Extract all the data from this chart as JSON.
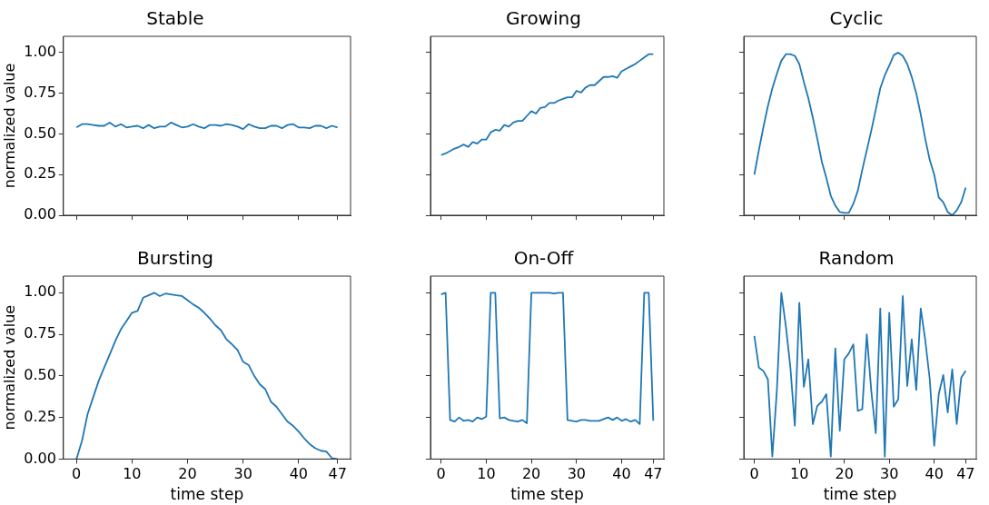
{
  "chart_data": [
    {
      "type": "line",
      "title": "Stable",
      "ylabel": "normalized value",
      "color": "#1f77b4",
      "x": [
        0,
        1,
        2,
        3,
        4,
        5,
        6,
        7,
        8,
        9,
        10,
        11,
        12,
        13,
        14,
        15,
        16,
        17,
        18,
        19,
        20,
        21,
        22,
        23,
        24,
        25,
        26,
        27,
        28,
        29,
        30,
        31,
        32,
        33,
        34,
        35,
        36,
        37,
        38,
        39,
        40,
        41,
        42,
        43,
        44,
        45,
        46,
        47
      ],
      "values": [
        0.54,
        0.56,
        0.56,
        0.555,
        0.55,
        0.55,
        0.57,
        0.545,
        0.56,
        0.54,
        0.545,
        0.55,
        0.535,
        0.555,
        0.535,
        0.545,
        0.545,
        0.57,
        0.555,
        0.54,
        0.545,
        0.56,
        0.545,
        0.535,
        0.555,
        0.555,
        0.55,
        0.56,
        0.555,
        0.545,
        0.53,
        0.56,
        0.545,
        0.535,
        0.535,
        0.55,
        0.55,
        0.535,
        0.555,
        0.56,
        0.54,
        0.54,
        0.535,
        0.55,
        0.55,
        0.535,
        0.55,
        0.54
      ],
      "xlim": [
        -2.35,
        49.35
      ],
      "ylim": [
        0,
        1.1
      ],
      "xticks": [
        {
          "value": 0,
          "label": null
        },
        {
          "value": 10,
          "label": null
        },
        {
          "value": 20,
          "label": null
        },
        {
          "value": 30,
          "label": null
        },
        {
          "value": 40,
          "label": null
        },
        {
          "value": 47,
          "label": null
        }
      ],
      "yticks": [
        {
          "value": 0,
          "label": "0.00"
        },
        {
          "value": 0.25,
          "label": "0.25"
        },
        {
          "value": 0.5,
          "label": "0.50"
        },
        {
          "value": 0.75,
          "label": "0.75"
        },
        {
          "value": 1,
          "label": "1.00"
        }
      ],
      "tick_labels": "y"
    },
    {
      "type": "line",
      "title": "Growing",
      "color": "#1f77b4",
      "x": [
        0,
        1,
        2,
        3,
        4,
        5,
        6,
        7,
        8,
        9,
        10,
        11,
        12,
        13,
        14,
        15,
        16,
        17,
        18,
        19,
        20,
        21,
        22,
        23,
        24,
        25,
        26,
        27,
        28,
        29,
        30,
        31,
        32,
        33,
        34,
        35,
        36,
        37,
        38,
        39,
        40,
        41,
        42,
        43,
        44,
        45,
        46,
        47
      ],
      "values": [
        0.37,
        0.38,
        0.395,
        0.41,
        0.42,
        0.435,
        0.42,
        0.45,
        0.44,
        0.465,
        0.465,
        0.51,
        0.525,
        0.52,
        0.555,
        0.545,
        0.57,
        0.58,
        0.58,
        0.61,
        0.64,
        0.625,
        0.66,
        0.665,
        0.69,
        0.69,
        0.705,
        0.715,
        0.725,
        0.725,
        0.765,
        0.755,
        0.785,
        0.8,
        0.8,
        0.825,
        0.85,
        0.85,
        0.855,
        0.845,
        0.885,
        0.9,
        0.915,
        0.93,
        0.95,
        0.97,
        0.99,
        0.99
      ],
      "xlim": [
        -2.35,
        49.35
      ],
      "ylim": [
        0,
        1.1
      ],
      "xticks": [
        {
          "value": 0,
          "label": null
        },
        {
          "value": 10,
          "label": null
        },
        {
          "value": 20,
          "label": null
        },
        {
          "value": 30,
          "label": null
        },
        {
          "value": 40,
          "label": null
        },
        {
          "value": 47,
          "label": null
        }
      ],
      "yticks": [
        {
          "value": 0,
          "label": null
        },
        {
          "value": 0.25,
          "label": null
        },
        {
          "value": 0.5,
          "label": null
        },
        {
          "value": 0.75,
          "label": null
        },
        {
          "value": 1,
          "label": null
        }
      ],
      "tick_labels": false
    },
    {
      "type": "line",
      "title": "Cyclic",
      "color": "#1f77b4",
      "x": [
        0,
        1,
        2,
        3,
        4,
        5,
        6,
        7,
        8,
        9,
        10,
        11,
        12,
        13,
        14,
        15,
        16,
        17,
        18,
        19,
        20,
        21,
        22,
        23,
        24,
        25,
        26,
        27,
        28,
        29,
        30,
        31,
        32,
        33,
        34,
        35,
        36,
        37,
        38,
        39,
        40,
        41,
        42,
        43,
        44,
        45,
        46,
        47
      ],
      "values": [
        0.25,
        0.4,
        0.54,
        0.67,
        0.78,
        0.87,
        0.95,
        0.99,
        0.99,
        0.98,
        0.93,
        0.82,
        0.72,
        0.6,
        0.47,
        0.33,
        0.23,
        0.12,
        0.06,
        0.02,
        0.015,
        0.015,
        0.07,
        0.15,
        0.28,
        0.4,
        0.52,
        0.65,
        0.78,
        0.86,
        0.92,
        0.985,
        1.0,
        0.98,
        0.93,
        0.85,
        0.75,
        0.62,
        0.47,
        0.34,
        0.25,
        0.11,
        0.08,
        0.02,
        0.0,
        0.03,
        0.08,
        0.17
      ],
      "xlim": [
        -2.35,
        49.35
      ],
      "ylim": [
        0,
        1.1
      ],
      "xticks": [
        {
          "value": 0,
          "label": null
        },
        {
          "value": 10,
          "label": null
        },
        {
          "value": 20,
          "label": null
        },
        {
          "value": 30,
          "label": null
        },
        {
          "value": 40,
          "label": null
        },
        {
          "value": 47,
          "label": null
        }
      ],
      "yticks": [
        {
          "value": 0,
          "label": null
        },
        {
          "value": 0.25,
          "label": null
        },
        {
          "value": 0.5,
          "label": null
        },
        {
          "value": 0.75,
          "label": null
        },
        {
          "value": 1,
          "label": null
        }
      ],
      "tick_labels": false
    },
    {
      "type": "line",
      "title": "Bursting",
      "xlabel": "time step",
      "ylabel": "normalized value",
      "color": "#1f77b4",
      "x": [
        0,
        1,
        2,
        3,
        4,
        5,
        6,
        7,
        8,
        9,
        10,
        11,
        12,
        13,
        14,
        15,
        16,
        17,
        18,
        19,
        20,
        21,
        22,
        23,
        24,
        25,
        26,
        27,
        28,
        29,
        30,
        31,
        32,
        33,
        34,
        35,
        36,
        37,
        38,
        39,
        40,
        41,
        42,
        43,
        44,
        45,
        46,
        47
      ],
      "values": [
        0,
        0.11,
        0.27,
        0.37,
        0.47,
        0.55,
        0.63,
        0.71,
        0.78,
        0.83,
        0.88,
        0.89,
        0.97,
        0.985,
        1.0,
        0.98,
        0.995,
        0.99,
        0.985,
        0.98,
        0.955,
        0.93,
        0.91,
        0.88,
        0.845,
        0.805,
        0.775,
        0.72,
        0.69,
        0.655,
        0.585,
        0.565,
        0.5,
        0.45,
        0.42,
        0.345,
        0.315,
        0.27,
        0.225,
        0.2,
        0.165,
        0.125,
        0.09,
        0.065,
        0.05,
        0.045,
        0.005,
        0.0
      ],
      "xlim": [
        -2.35,
        49.35
      ],
      "ylim": [
        0,
        1.1
      ],
      "xticks": [
        0,
        10,
        20,
        30,
        40,
        47
      ],
      "yticks": [
        {
          "value": 0,
          "label": "0.00"
        },
        {
          "value": 0.25,
          "label": "0.25"
        },
        {
          "value": 0.5,
          "label": "0.50"
        },
        {
          "value": 0.75,
          "label": "0.75"
        },
        {
          "value": 1,
          "label": "1.00"
        }
      ]
    },
    {
      "type": "line",
      "title": "On-Off",
      "xlabel": "time step",
      "color": "#1f77b4",
      "x": [
        0,
        1,
        2,
        3,
        4,
        5,
        6,
        7,
        8,
        9,
        10,
        11,
        12,
        13,
        14,
        15,
        16,
        17,
        18,
        19,
        20,
        21,
        22,
        23,
        24,
        25,
        26,
        27,
        28,
        29,
        30,
        31,
        32,
        33,
        34,
        35,
        36,
        37,
        38,
        39,
        40,
        41,
        42,
        43,
        44,
        45,
        46,
        47
      ],
      "values": [
        0.99,
        1.0,
        0.235,
        0.225,
        0.25,
        0.23,
        0.235,
        0.225,
        0.25,
        0.24,
        0.255,
        1.0,
        1.0,
        0.245,
        0.25,
        0.235,
        0.23,
        0.225,
        0.235,
        0.215,
        1.0,
        1.0,
        1.0,
        1.0,
        1.0,
        0.995,
        1.0,
        1.0,
        0.235,
        0.23,
        0.225,
        0.235,
        0.235,
        0.23,
        0.23,
        0.23,
        0.24,
        0.25,
        0.235,
        0.25,
        0.23,
        0.24,
        0.225,
        0.235,
        0.21,
        1.0,
        1.0,
        0.23
      ],
      "xlim": [
        -2.35,
        49.35
      ],
      "ylim": [
        0,
        1.1
      ],
      "xticks": [
        0,
        10,
        20,
        30,
        40,
        47
      ],
      "yticks": [
        {
          "value": 0,
          "label": null
        },
        {
          "value": 0.25,
          "label": null
        },
        {
          "value": 0.5,
          "label": null
        },
        {
          "value": 0.75,
          "label": null
        },
        {
          "value": 1,
          "label": null
        }
      ],
      "tick_labels": "x"
    },
    {
      "type": "line",
      "title": "Random",
      "xlabel": "time step",
      "color": "#1f77b4",
      "x": [
        0,
        1,
        2,
        3,
        4,
        5,
        6,
        7,
        8,
        9,
        10,
        11,
        12,
        13,
        14,
        15,
        16,
        17,
        18,
        19,
        20,
        21,
        22,
        23,
        24,
        25,
        26,
        27,
        28,
        29,
        30,
        31,
        32,
        33,
        34,
        35,
        36,
        37,
        38,
        39,
        40,
        41,
        42,
        43,
        44,
        45,
        46,
        47
      ],
      "values": [
        0.74,
        0.55,
        0.53,
        0.48,
        0.015,
        0.41,
        1.0,
        0.8,
        0.555,
        0.2,
        0.94,
        0.435,
        0.6,
        0.21,
        0.32,
        0.345,
        0.39,
        0.015,
        0.665,
        0.17,
        0.6,
        0.635,
        0.69,
        0.29,
        0.3,
        0.75,
        0.41,
        0.155,
        0.905,
        0.015,
        0.88,
        0.315,
        0.36,
        0.98,
        0.44,
        0.72,
        0.415,
        0.905,
        0.715,
        0.48,
        0.08,
        0.39,
        0.505,
        0.28,
        0.54,
        0.21,
        0.49,
        0.53
      ],
      "xlim": [
        -2.35,
        49.35
      ],
      "ylim": [
        0,
        1.1
      ],
      "xticks": [
        0,
        10,
        20,
        30,
        40,
        47
      ],
      "yticks": [
        {
          "value": 0,
          "label": null
        },
        {
          "value": 0.25,
          "label": null
        },
        {
          "value": 0.5,
          "label": null
        },
        {
          "value": 0.75,
          "label": null
        },
        {
          "value": 1,
          "label": null
        }
      ],
      "tick_labels": "x"
    }
  ]
}
